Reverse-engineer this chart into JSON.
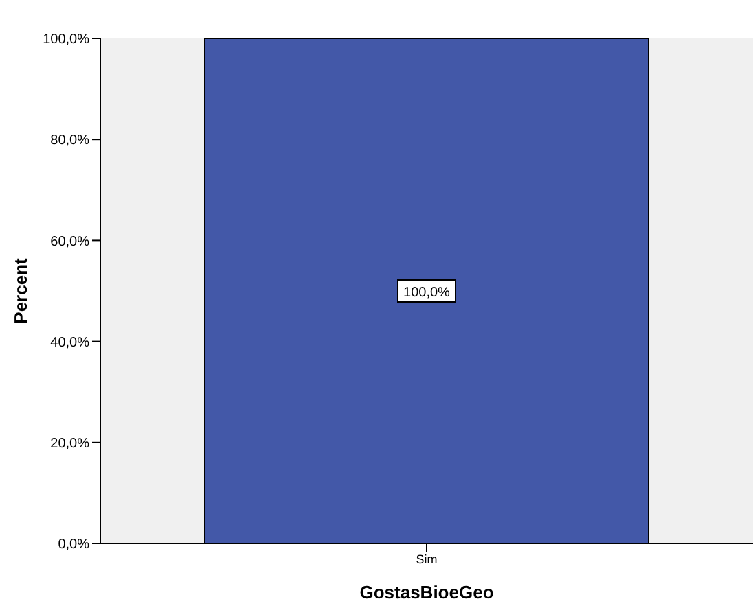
{
  "chart_data": {
    "type": "bar",
    "xlabel": "GostasBioeGeo",
    "ylabel": "Percent",
    "categories": [
      "Sim"
    ],
    "values": [
      100
    ],
    "color": "#4358a8",
    "value_labels": [
      "100,0%"
    ],
    "ylim": [
      0,
      100
    ],
    "yticks": [
      {
        "value": 0,
        "label": "0,0%"
      },
      {
        "value": 20,
        "label": "20,0%"
      },
      {
        "value": 40,
        "label": "40,0%"
      },
      {
        "value": 60,
        "label": "60,0%"
      },
      {
        "value": 80,
        "label": "80,0%"
      },
      {
        "value": 100,
        "label": "100,0%"
      }
    ],
    "grid": false
  }
}
